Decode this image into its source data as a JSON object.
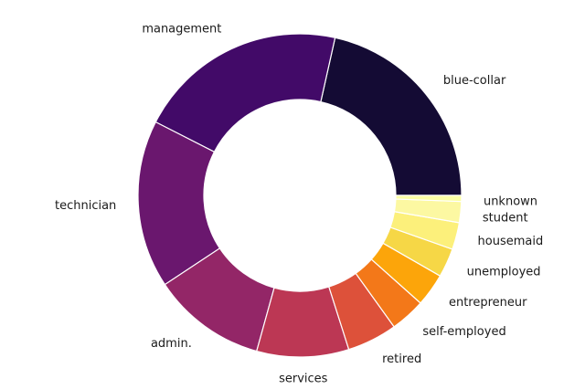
{
  "chart_data": {
    "type": "pie",
    "donut": true,
    "start_angle_deg": 0,
    "direction": "counterclockwise",
    "title": "",
    "legend": "none",
    "categories": [
      "blue-collar",
      "management",
      "technician",
      "admin.",
      "services",
      "retired",
      "self-employed",
      "entrepreneur",
      "unemployed",
      "housemaid",
      "student",
      "unknown"
    ],
    "values": [
      21.5,
      21.0,
      16.8,
      11.4,
      9.2,
      5.0,
      3.5,
      3.3,
      2.9,
      2.7,
      2.1,
      0.6
    ],
    "colors": [
      "#140b34",
      "#420a68",
      "#6a176e",
      "#932667",
      "#bc3754",
      "#dd513a",
      "#f37819",
      "#fca50a",
      "#f6d746",
      "#fcf07b",
      "#fcf8a2",
      "#fcffa4"
    ]
  }
}
